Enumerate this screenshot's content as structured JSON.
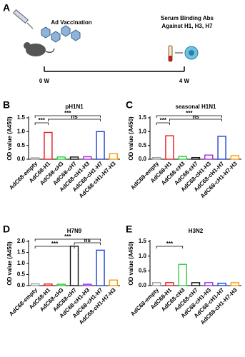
{
  "panel_a": {
    "label": "A",
    "vaccination": "Ad Vaccination",
    "serum": [
      "Serum Binding Abs",
      "Against H1, H3, H7"
    ],
    "timepoints": [
      "0 W",
      "4 W"
    ]
  },
  "chart_data": [
    {
      "type": "bar",
      "panel_label": "B",
      "title": "pH1N1",
      "y_label": "OD value (A450)",
      "categories": [
        "AdC68-empty",
        "AdC68-H1",
        "AdC68-cH3",
        "AdC68-cH7",
        "AdC68-cH1-H3",
        "AdC68-cH1-H7",
        "AdC68-cH1-H7-H3"
      ],
      "values": [
        0.05,
        0.97,
        0.08,
        0.08,
        0.09,
        1.0,
        0.2
      ],
      "colors": [
        "#9e9e9e",
        "#e41a1c",
        "#2ecc40",
        "#111111",
        "#9b30d9",
        "#1f3fd6",
        "#f39c12"
      ],
      "ylim": [
        0,
        1.5
      ],
      "yticks": [
        {
          "value": 0,
          "label": "0.0"
        },
        0.5,
        {
          "value": 1,
          "label": "1.0"
        },
        1.5
      ],
      "brackets": [
        {
          "from": "AdC68-empty",
          "to": "AdC68-H1",
          "label": "***"
        },
        {
          "from": "AdC68-H1",
          "to": "AdC68-cH1-H7",
          "label": "ns"
        },
        {
          "from": "AdC68-empty",
          "to": "AdC68-cH1-H7",
          "label": "***"
        }
      ]
    },
    {
      "type": "bar",
      "panel_label": "C",
      "title": "seasonal H1N1",
      "y_label": "OD value (A450)",
      "categories": [
        "AdC68-empty",
        "AdC68-H1",
        "AdC68-cH3",
        "AdC68-cH7",
        "AdC68-cH1-H3",
        "AdC68-cH1-H7",
        "AdC68-cH1-H7-H3"
      ],
      "values": [
        0.06,
        0.85,
        0.1,
        0.06,
        0.15,
        0.83,
        0.13
      ],
      "colors": [
        "#9e9e9e",
        "#e41a1c",
        "#2ecc40",
        "#111111",
        "#9b30d9",
        "#1f3fd6",
        "#f39c12"
      ],
      "ylim": [
        0,
        1.5
      ],
      "yticks": [
        {
          "value": 0,
          "label": "0.0"
        },
        0.5,
        {
          "value": 1,
          "label": "1.0"
        },
        1.5
      ],
      "brackets": [
        {
          "from": "AdC68-empty",
          "to": "AdC68-H1",
          "label": "***"
        },
        {
          "from": "AdC68-H1",
          "to": "AdC68-cH1-H7",
          "label": "ns"
        },
        {
          "from": "AdC68-empty",
          "to": "AdC68-cH1-H7",
          "label": "***"
        }
      ]
    },
    {
      "type": "bar",
      "panel_label": "D",
      "title": "H7N9",
      "y_label": "OD value (A450)",
      "categories": [
        "AdC68-empty",
        "AdC68-H1",
        "AdC68-cH3",
        "AdC68-cH7",
        "AdC68-cH1-H3",
        "AdC68-cH1-H7",
        "AdC68-cH1-H7-H3"
      ],
      "values": [
        0.08,
        0.07,
        0.06,
        1.78,
        0.06,
        1.6,
        0.25
      ],
      "colors": [
        "#9e9e9e",
        "#e41a1c",
        "#2ecc40",
        "#111111",
        "#9b30d9",
        "#1f3fd6",
        "#f39c12"
      ],
      "ylim": [
        0,
        2
      ],
      "yticks": [
        {
          "value": 0,
          "label": "0.0"
        },
        0.5,
        {
          "value": 1,
          "label": "1.0"
        },
        1.5,
        {
          "value": 2,
          "label": "2.0"
        }
      ],
      "brackets": [
        {
          "from": "AdC68-empty",
          "to": "AdC68-cH7",
          "label": "***"
        },
        {
          "from": "AdC68-cH7",
          "to": "AdC68-cH1-H7",
          "label": "ns"
        },
        {
          "from": "AdC68-empty",
          "to": "AdC68-cH1-H7",
          "label": "***"
        }
      ]
    },
    {
      "type": "bar",
      "panel_label": "E",
      "title": "H3N2",
      "y_label": "OD value (A450)",
      "categories": [
        "AdC68-empty",
        "AdC68-H1",
        "AdC68-cH3",
        "AdC68-cH7",
        "AdC68-cH1-H3",
        "AdC68-cH1-H7",
        "AdC68-cH1-H7-H3"
      ],
      "values": [
        0.1,
        0.1,
        0.72,
        0.1,
        0.1,
        0.08,
        0.1
      ],
      "colors": [
        "#9e9e9e",
        "#e41a1c",
        "#2ecc40",
        "#111111",
        "#9b30d9",
        "#1f3fd6",
        "#f39c12"
      ],
      "ylim": [
        0,
        1.5
      ],
      "yticks": [
        {
          "value": 0,
          "label": "0.0"
        },
        0.5,
        {
          "value": 1,
          "label": "1.0"
        },
        1.5
      ],
      "brackets": [
        {
          "from": "AdC68-empty",
          "to": "AdC68-cH3",
          "label": "***"
        }
      ]
    }
  ]
}
